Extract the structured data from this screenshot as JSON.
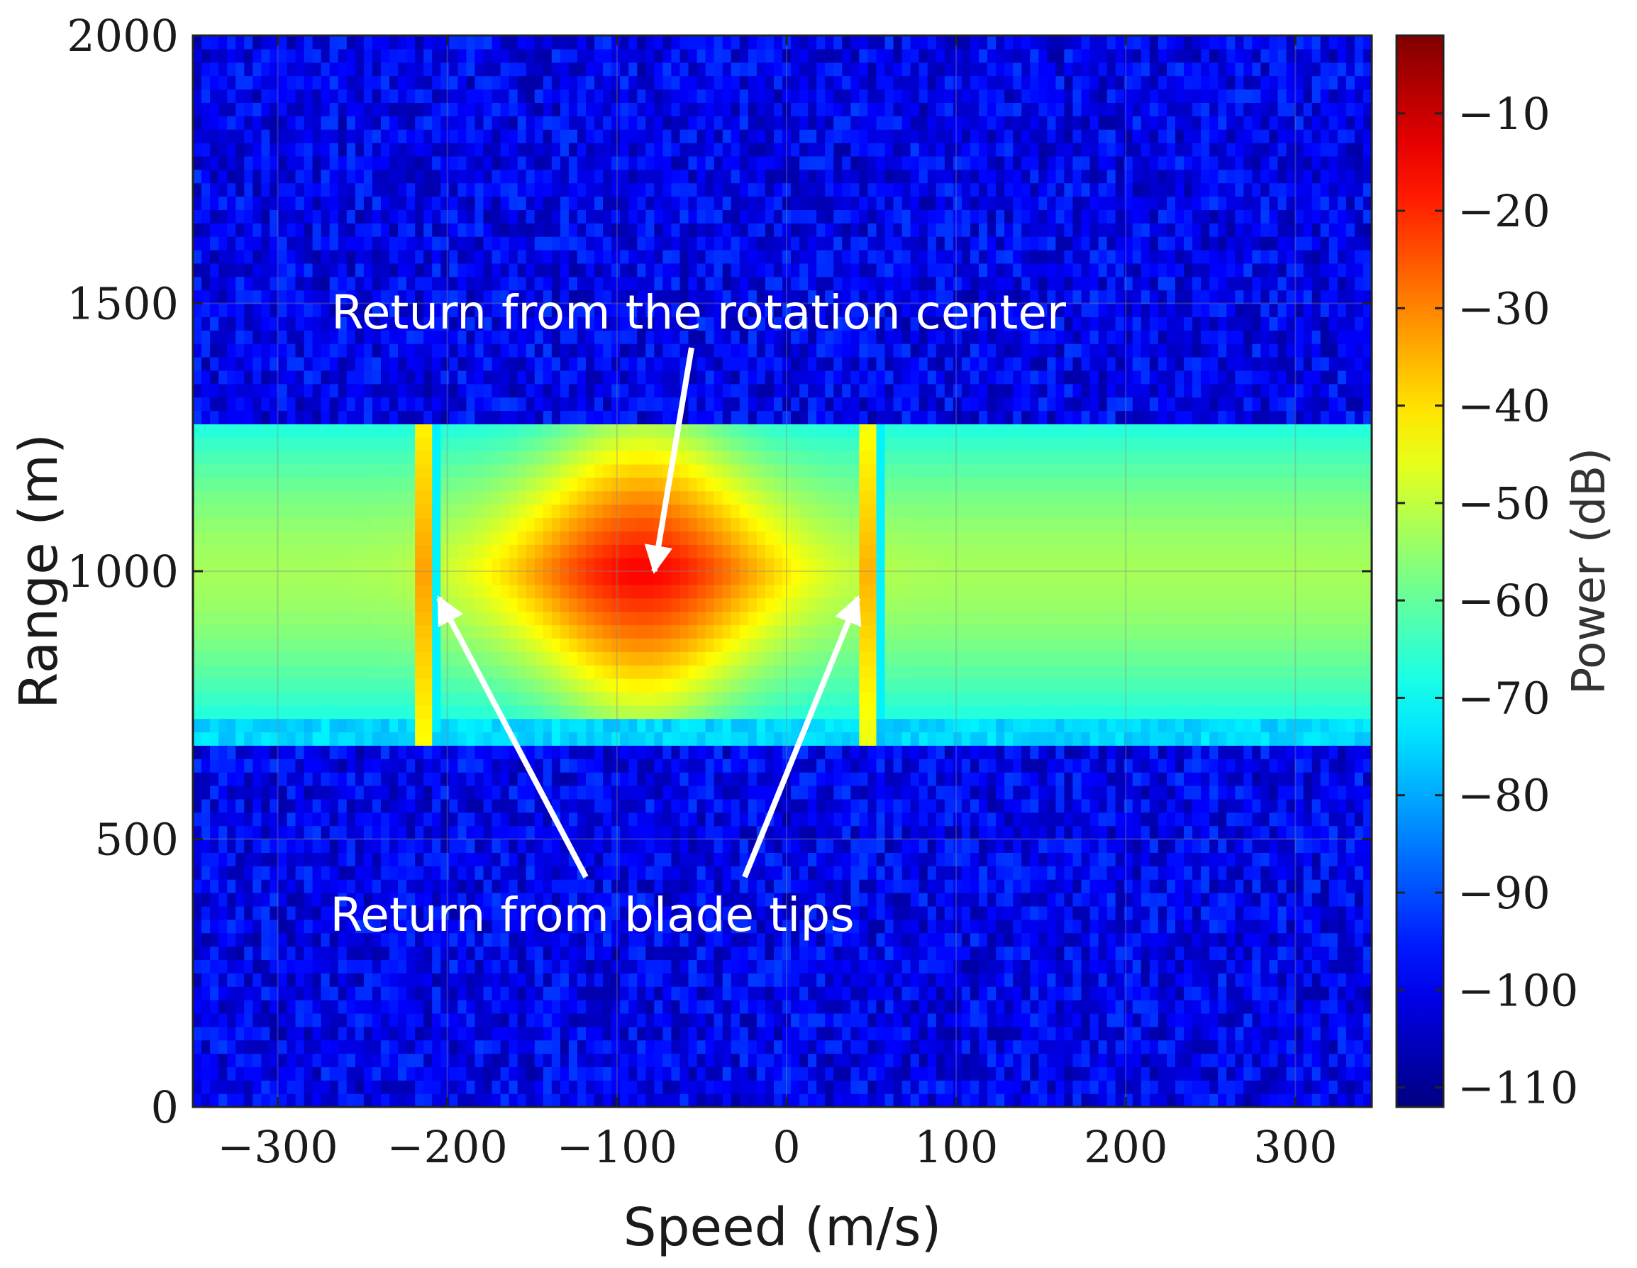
{
  "chart_data": {
    "type": "heatmap",
    "title": "",
    "xlabel": "Speed (m/s)",
    "ylabel": "Range (m)",
    "xlim": [
      -350,
      345
    ],
    "ylim": [
      0,
      2000
    ],
    "x_ticks": [
      {
        "value": -300,
        "label": "−300"
      },
      {
        "value": -200,
        "label": "−200"
      },
      {
        "value": -100,
        "label": "−100"
      },
      {
        "value": 0,
        "label": "0"
      },
      {
        "value": 100,
        "label": "100"
      },
      {
        "value": 200,
        "label": "200"
      },
      {
        "value": 300,
        "label": "300"
      }
    ],
    "y_ticks": [
      {
        "value": 0,
        "label": "0"
      },
      {
        "value": 500,
        "label": "500"
      },
      {
        "value": 1000,
        "label": "1000"
      },
      {
        "value": 1500,
        "label": "1500"
      },
      {
        "value": 2000,
        "label": "2000"
      }
    ],
    "grid": true,
    "colorbar": {
      "label": "Power (dB)",
      "range": [
        -112,
        -2
      ],
      "colormap": "jet",
      "ticks": [
        {
          "value": -10,
          "label": "−10"
        },
        {
          "value": -20,
          "label": "−20"
        },
        {
          "value": -30,
          "label": "−30"
        },
        {
          "value": -40,
          "label": "−40"
        },
        {
          "value": -50,
          "label": "−50"
        },
        {
          "value": -60,
          "label": "−60"
        },
        {
          "value": -70,
          "label": "−70"
        },
        {
          "value": -80,
          "label": "−80"
        },
        {
          "value": -90,
          "label": "−90"
        },
        {
          "value": -100,
          "label": "−100"
        },
        {
          "value": -110,
          "label": "−110"
        }
      ]
    },
    "noise_floor_db": -100,
    "target_band": {
      "range_min": 675,
      "range_max": 1275,
      "center_range": 1000,
      "edge_power_db": -70,
      "center_power_db": -53
    },
    "features": [
      {
        "name": "rotation center",
        "speed": -85,
        "range_min": 725,
        "range_max": 1275,
        "peak_power_db": -15
      },
      {
        "name": "blade tip",
        "speed": -216,
        "range_min": 725,
        "range_max": 1275,
        "peak_power_db": -33
      },
      {
        "name": "blade tip",
        "speed": 48,
        "range_min": 725,
        "range_max": 1275,
        "peak_power_db": -35
      }
    ],
    "annotations": [
      {
        "text": "Return from the rotation center",
        "arrow_to_speed": -78,
        "arrow_to_range": 1000
      },
      {
        "text": "Return from blade tips",
        "arrow_to_speed": -205,
        "arrow_to_range": 950
      },
      {
        "text": "Return from blade tips",
        "arrow_to_speed": 42,
        "arrow_to_range": 950
      }
    ]
  }
}
